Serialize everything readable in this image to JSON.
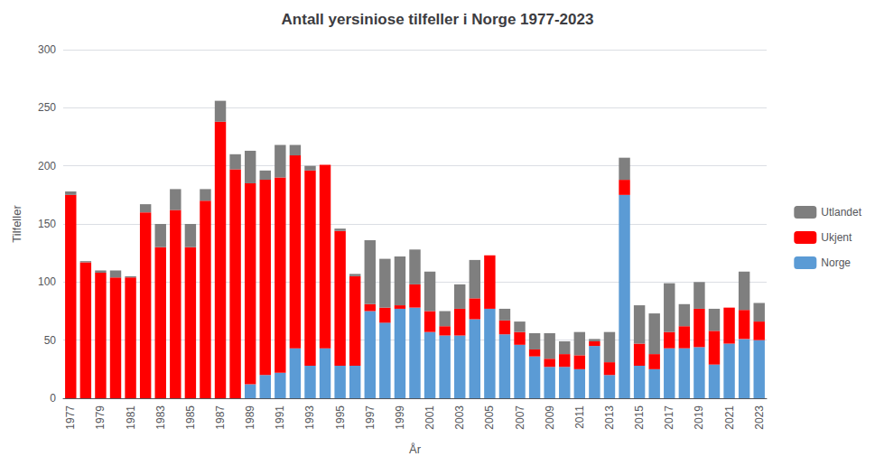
{
  "chart_data": {
    "type": "bar",
    "stacked": true,
    "title": "Antall yersiniose tilfeller i Norge 1977-2023",
    "xlabel": "År",
    "ylabel": "Tilfeller",
    "categories": [
      "1977",
      null,
      "1979",
      null,
      "1981",
      null,
      "1983",
      null,
      "1985",
      null,
      "1987",
      null,
      "1989",
      null,
      "1991",
      null,
      "1993",
      null,
      "1995",
      null,
      "1997",
      null,
      "1999",
      null,
      "2001",
      null,
      "2003",
      null,
      "2005",
      null,
      "2007",
      null,
      "2009",
      null,
      "2011",
      null,
      "2013",
      null,
      "2015",
      null,
      "2017",
      null,
      "2019",
      null,
      "2021",
      null,
      "2023"
    ],
    "series": [
      {
        "name": "Norge",
        "color": "#5B9BD5",
        "values": [
          0,
          0,
          0,
          0,
          0,
          0,
          0,
          0,
          0,
          0,
          0,
          0,
          12,
          20,
          22,
          43,
          28,
          43,
          28,
          28,
          75,
          65,
          77,
          78,
          57,
          54,
          54,
          68,
          77,
          55,
          46,
          36,
          27,
          27,
          25,
          45,
          20,
          175,
          28,
          25,
          43,
          43,
          44,
          29,
          47,
          51,
          50
        ]
      },
      {
        "name": "Ukjent",
        "color": "#FF0000",
        "values": [
          175,
          117,
          108,
          104,
          104,
          160,
          130,
          162,
          130,
          170,
          238,
          197,
          173,
          168,
          168,
          166,
          168,
          158,
          116,
          77,
          6,
          13,
          3,
          20,
          18,
          8,
          23,
          18,
          46,
          12,
          11,
          6,
          7,
          11,
          12,
          4,
          11,
          13,
          19,
          13,
          14,
          19,
          33,
          29,
          31,
          25,
          16
        ]
      },
      {
        "name": "Utlandet",
        "color": "#7F7F7F",
        "values": [
          3,
          1,
          2,
          6,
          1,
          7,
          20,
          18,
          20,
          10,
          18,
          13,
          28,
          8,
          28,
          9,
          4,
          0,
          2,
          2,
          55,
          42,
          42,
          30,
          34,
          13,
          21,
          33,
          0,
          10,
          9,
          14,
          22,
          11,
          20,
          2,
          26,
          19,
          33,
          35,
          42,
          19,
          23,
          19,
          0,
          33,
          16
        ]
      }
    ],
    "ylim": [
      0,
      300
    ],
    "yticks": [
      0,
      50,
      100,
      150,
      200,
      250,
      300
    ],
    "grid": true,
    "legend": "right"
  }
}
